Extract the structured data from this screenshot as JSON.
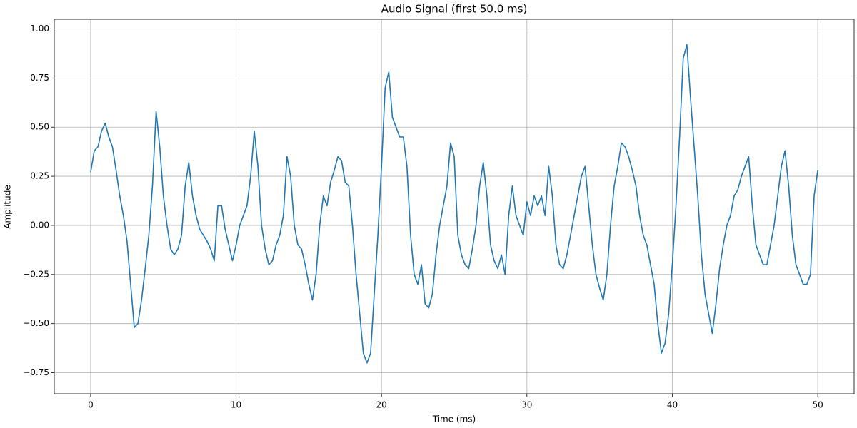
{
  "chart_data": {
    "type": "line",
    "title": "Audio Signal (first 50.0 ms)",
    "x_label": "Time (ms)",
    "y_label": "Amplitude",
    "xlim": [
      -2.5,
      52.5
    ],
    "ylim": [
      -0.857,
      1.049
    ],
    "xticks": [
      0,
      10,
      20,
      30,
      40,
      50
    ],
    "yticks": [
      {
        "value": -0.75,
        "label": "−0.75"
      },
      {
        "value": -0.5,
        "label": "−0.50"
      },
      {
        "value": -0.25,
        "label": "−0.25"
      },
      {
        "value": 0,
        "label": "0.00"
      },
      {
        "value": 0.25,
        "label": "0.25"
      },
      {
        "value": 0.5,
        "label": "0.50"
      },
      {
        "value": 0.75,
        "label": "0.75"
      },
      {
        "value": 1,
        "label": "1.00"
      }
    ],
    "grid": true,
    "x": [
      0,
      0.25,
      0.5,
      0.75,
      1,
      1.25,
      1.5,
      1.75,
      2,
      2.25,
      2.5,
      2.75,
      3,
      3.25,
      3.5,
      3.75,
      4,
      4.25,
      4.5,
      4.75,
      5,
      5.25,
      5.5,
      5.75,
      6,
      6.25,
      6.5,
      6.75,
      7,
      7.25,
      7.5,
      7.75,
      8,
      8.25,
      8.5,
      8.75,
      9,
      9.25,
      9.5,
      9.75,
      10,
      10.25,
      10.5,
      10.75,
      11,
      11.25,
      11.5,
      11.75,
      12,
      12.25,
      12.5,
      12.75,
      13,
      13.25,
      13.5,
      13.75,
      14,
      14.25,
      14.5,
      14.75,
      15,
      15.25,
      15.5,
      15.75,
      16,
      16.25,
      16.5,
      16.75,
      17,
      17.25,
      17.5,
      17.75,
      18,
      18.25,
      18.5,
      18.75,
      19,
      19.25,
      19.5,
      19.75,
      20,
      20.25,
      20.5,
      20.75,
      21,
      21.25,
      21.5,
      21.75,
      22,
      22.25,
      22.5,
      22.75,
      23,
      23.25,
      23.5,
      23.75,
      24,
      24.25,
      24.5,
      24.75,
      25,
      25.25,
      25.5,
      25.75,
      26,
      26.25,
      26.5,
      26.75,
      27,
      27.25,
      27.5,
      27.75,
      28,
      28.25,
      28.5,
      28.75,
      29,
      29.25,
      29.5,
      29.75,
      30,
      30.25,
      30.5,
      30.75,
      31,
      31.25,
      31.5,
      31.75,
      32,
      32.25,
      32.5,
      32.75,
      33,
      33.25,
      33.5,
      33.75,
      34,
      34.25,
      34.5,
      34.75,
      35,
      35.25,
      35.5,
      35.75,
      36,
      36.25,
      36.5,
      36.75,
      37,
      37.25,
      37.5,
      37.75,
      38,
      38.25,
      38.5,
      38.75,
      39,
      39.25,
      39.5,
      39.75,
      40,
      40.25,
      40.5,
      40.75,
      41,
      41.25,
      41.5,
      41.75,
      42,
      42.25,
      42.5,
      42.75,
      43,
      43.25,
      43.5,
      43.75,
      44,
      44.25,
      44.5,
      44.75,
      45,
      45.25,
      45.5,
      45.75,
      46,
      46.25,
      46.5,
      46.75,
      47,
      47.25,
      47.5,
      47.75,
      48,
      48.25,
      48.5,
      48.75,
      49,
      49.25,
      49.5,
      49.75,
      50
    ],
    "series": [
      {
        "color": "#1f77b4",
        "values": [
          0.27,
          0.38,
          0.4,
          0.48,
          0.52,
          0.45,
          0.4,
          0.28,
          0.15,
          0.05,
          -0.08,
          -0.3,
          -0.52,
          -0.5,
          -0.38,
          -0.22,
          -0.05,
          0.2,
          0.58,
          0.4,
          0.15,
          0,
          -0.12,
          -0.15,
          -0.12,
          -0.05,
          0.2,
          0.32,
          0.15,
          0.05,
          -0.02,
          -0.05,
          -0.08,
          -0.12,
          -0.18,
          0.1,
          0.1,
          -0.02,
          -0.1,
          -0.18,
          -0.1,
          0,
          0.05,
          0.1,
          0.25,
          0.48,
          0.3,
          0,
          -0.12,
          -0.2,
          -0.18,
          -0.1,
          -0.05,
          0.05,
          0.35,
          0.25,
          0,
          -0.1,
          -0.12,
          -0.2,
          -0.3,
          -0.38,
          -0.25,
          0,
          0.15,
          0.1,
          0.22,
          0.28,
          0.35,
          0.33,
          0.22,
          0.2,
          0,
          -0.25,
          -0.45,
          -0.65,
          -0.7,
          -0.65,
          -0.35,
          -0.05,
          0.3,
          0.7,
          0.78,
          0.55,
          0.5,
          0.45,
          0.45,
          0.3,
          -0.05,
          -0.25,
          -0.3,
          -0.2,
          -0.4,
          -0.42,
          -0.35,
          -0.15,
          0,
          0.1,
          0.2,
          0.42,
          0.35,
          -0.05,
          -0.15,
          -0.2,
          -0.22,
          -0.12,
          0,
          0.2,
          0.32,
          0.15,
          -0.1,
          -0.18,
          -0.22,
          -0.15,
          -0.25,
          0.05,
          0.2,
          0.05,
          0,
          -0.05,
          0.12,
          0.05,
          0.15,
          0.1,
          0.15,
          0.05,
          0.3,
          0.15,
          -0.1,
          -0.2,
          -0.22,
          -0.15,
          -0.05,
          0.05,
          0.15,
          0.25,
          0.3,
          0.1,
          -0.1,
          -0.25,
          -0.32,
          -0.38,
          -0.25,
          0,
          0.2,
          0.3,
          0.42,
          0.4,
          0.35,
          0.28,
          0.2,
          0.05,
          -0.05,
          -0.1,
          -0.2,
          -0.3,
          -0.5,
          -0.65,
          -0.6,
          -0.45,
          -0.2,
          0.1,
          0.45,
          0.85,
          0.92,
          0.65,
          0.4,
          0.15,
          -0.15,
          -0.35,
          -0.45,
          -0.55,
          -0.4,
          -0.22,
          -0.1,
          0,
          0.05,
          0.15,
          0.18,
          0.25,
          0.3,
          0.35,
          0.1,
          -0.1,
          -0.15,
          -0.2,
          -0.2,
          -0.1,
          0,
          0.15,
          0.3,
          0.38,
          0.2,
          -0.05,
          -0.2,
          -0.25,
          -0.3,
          -0.3,
          -0.25,
          0.15,
          0.28
        ]
      }
    ]
  }
}
